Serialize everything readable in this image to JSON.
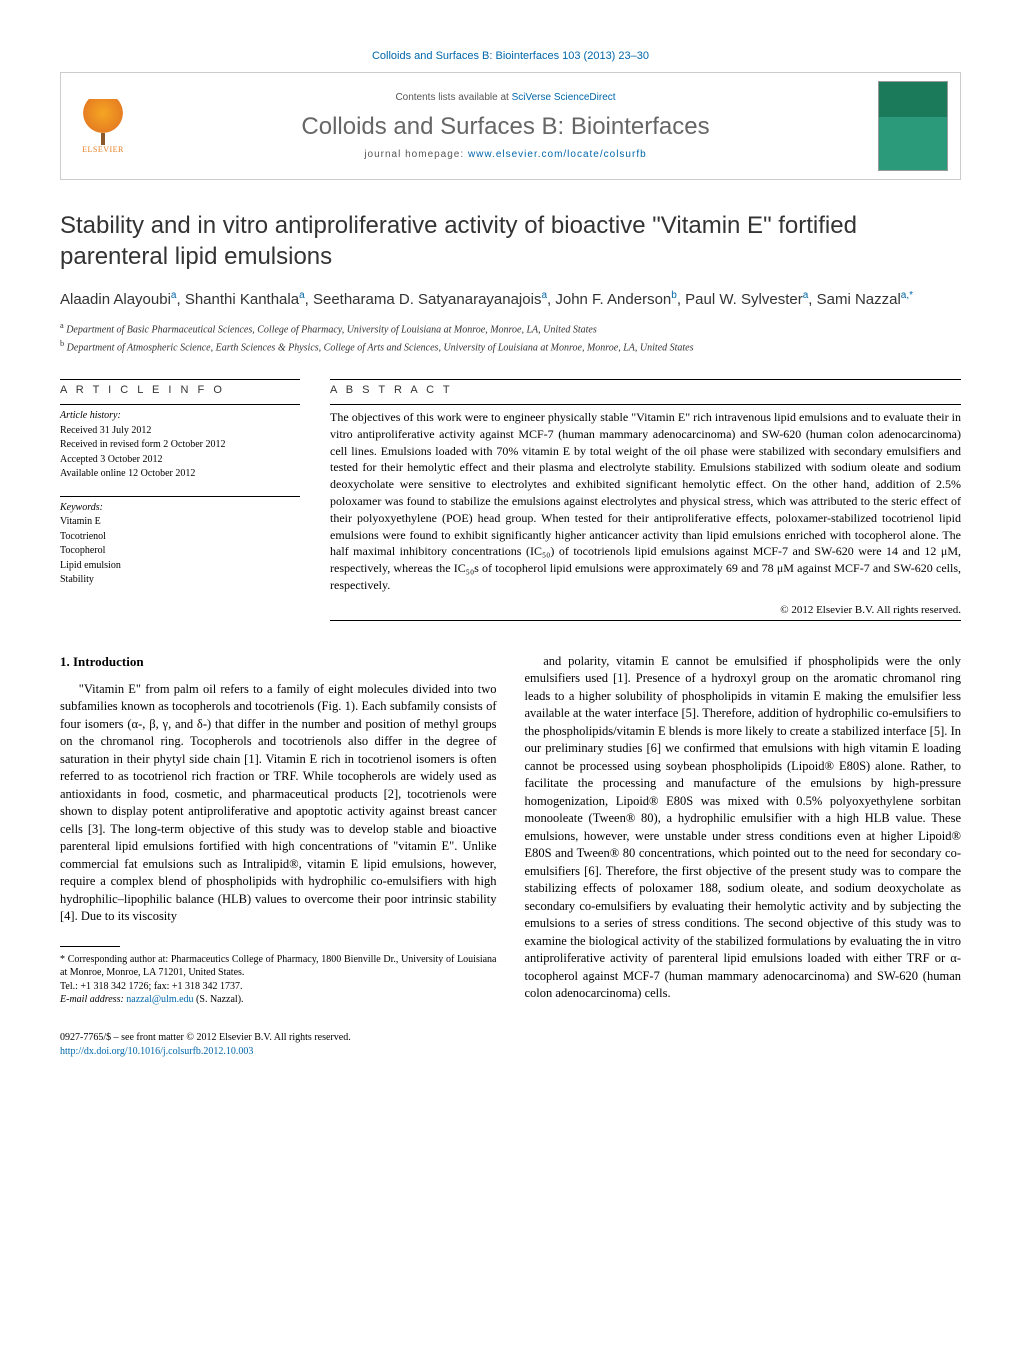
{
  "citation": "Colloids and Surfaces B: Biointerfaces 103 (2013) 23–30",
  "masthead": {
    "publisher": "ELSEVIER",
    "contents_prefix": "Contents lists available at ",
    "contents_link": "SciVerse ScienceDirect",
    "journal": "Colloids and Surfaces B: Biointerfaces",
    "homepage_label": "journal homepage: ",
    "homepage_url": "www.elsevier.com/locate/colsurfb"
  },
  "title": "Stability and in vitro antiproliferative activity of bioactive \"Vitamin E\" fortified parenteral lipid emulsions",
  "authors_html": "Alaadin Alayoubi<sup>a</sup>, Shanthi Kanthala<sup>a</sup>, Seetharama D. Satyanarayanajois<sup>a</sup>, John F. Anderson<sup>b</sup>, Paul W. Sylvester<sup>a</sup>, Sami Nazzal<sup>a,*</sup>",
  "affiliations": [
    {
      "key": "a",
      "text": "Department of Basic Pharmaceutical Sciences, College of Pharmacy, University of Louisiana at Monroe, Monroe, LA, United States"
    },
    {
      "key": "b",
      "text": "Department of Atmospheric Science, Earth Sciences & Physics, College of Arts and Sciences, University of Louisiana at Monroe, Monroe, LA, United States"
    }
  ],
  "article_info": {
    "heading": "A R T I C L E   I N F O",
    "history_label": "Article history:",
    "history": [
      "Received 31 July 2012",
      "Received in revised form 2 October 2012",
      "Accepted 3 October 2012",
      "Available online 12 October 2012"
    ],
    "keywords_label": "Keywords:",
    "keywords": [
      "Vitamin E",
      "Tocotrienol",
      "Tocopherol",
      "Lipid emulsion",
      "Stability"
    ]
  },
  "abstract": {
    "heading": "A B S T R A C T",
    "text": "The objectives of this work were to engineer physically stable \"Vitamin E\" rich intravenous lipid emulsions and to evaluate their in vitro antiproliferative activity against MCF-7 (human mammary adenocarcinoma) and SW-620 (human colon adenocarcinoma) cell lines. Emulsions loaded with 70% vitamin E by total weight of the oil phase were stabilized with secondary emulsifiers and tested for their hemolytic effect and their plasma and electrolyte stability. Emulsions stabilized with sodium oleate and sodium deoxycholate were sensitive to electrolytes and exhibited significant hemolytic effect. On the other hand, addition of 2.5% poloxamer was found to stabilize the emulsions against electrolytes and physical stress, which was attributed to the steric effect of their polyoxyethylene (POE) head group. When tested for their antiproliferative effects, poloxamer-stabilized tocotrienol lipid emulsions were found to exhibit significantly higher anticancer activity than lipid emulsions enriched with tocopherol alone. The half maximal inhibitory concentrations (IC₅₀) of tocotrienols lipid emulsions against MCF-7 and SW-620 were 14 and 12 μM, respectively, whereas the IC₅₀s of tocopherol lipid emulsions were approximately 69 and 78 μM against MCF-7 and SW-620 cells, respectively.",
    "copyright": "© 2012 Elsevier B.V. All rights reserved."
  },
  "body": {
    "section_number": "1.",
    "section_title": "Introduction",
    "paragraphs": [
      "\"Vitamin E\" from palm oil refers to a family of eight molecules divided into two subfamilies known as tocopherols and tocotrienols (Fig. 1). Each subfamily consists of four isomers (α-, β, γ, and δ-) that differ in the number and position of methyl groups on the chromanol ring. Tocopherols and tocotrienols also differ in the degree of saturation in their phytyl side chain [1]. Vitamin E rich in tocotrienol isomers is often referred to as tocotrienol rich fraction or TRF. While tocopherols are widely used as antioxidants in food, cosmetic, and pharmaceutical products [2], tocotrienols were shown to display potent antiproliferative and apoptotic activity against breast cancer cells [3]. The long-term objective of this study was to develop stable and bioactive parenteral lipid emulsions fortified with high concentrations of \"vitamin E\". Unlike commercial fat emulsions such as Intralipid®, vitamin E lipid emulsions, however, require a complex blend of phospholipids with hydrophilic co-emulsifiers with high hydrophilic–lipophilic balance (HLB) values to overcome their poor intrinsic stability [4]. Due to its viscosity",
      "and polarity, vitamin E cannot be emulsified if phospholipids were the only emulsifiers used [1]. Presence of a hydroxyl group on the aromatic chromanol ring leads to a higher solubility of phospholipids in vitamin E making the emulsifier less available at the water interface [5]. Therefore, addition of hydrophilic co-emulsifiers to the phospholipids/vitamin E blends is more likely to create a stabilized interface [5]. In our preliminary studies [6] we confirmed that emulsions with high vitamin E loading cannot be processed using soybean phospholipids (Lipoid® E80S) alone. Rather, to facilitate the processing and manufacture of the emulsions by high-pressure homogenization, Lipoid® E80S was mixed with 0.5% polyoxyethylene sorbitan monooleate (Tween® 80), a hydrophilic emulsifier with a high HLB value. These emulsions, however, were unstable under stress conditions even at higher Lipoid® E80S and Tween® 80 concentrations, which pointed out to the need for secondary co-emulsifiers [6]. Therefore, the first objective of the present study was to compare the stabilizing effects of poloxamer 188, sodium oleate, and sodium deoxycholate as secondary co-emulsifiers by evaluating their hemolytic activity and by subjecting the emulsions to a series of stress conditions. The second objective of this study was to examine the biological activity of the stabilized formulations by evaluating the in vitro antiproliferative activity of parenteral lipid emulsions loaded with either TRF or α-tocopherol against MCF-7 (human mammary adenocarcinoma) and SW-620 (human colon adenocarcinoma) cells."
    ],
    "corresponding": {
      "label": "* Corresponding author at: Pharmaceutics College of Pharmacy, 1800 Bienville Dr., University of Louisiana at Monroe, Monroe, LA 71201, United States.",
      "tel": "Tel.: +1 318 342 1726; fax: +1 318 342 1737.",
      "email_label": "E-mail address: ",
      "email": "nazzal@ulm.edu",
      "email_suffix": " (S. Nazzal)."
    }
  },
  "footer": {
    "issn": "0927-7765/$ – see front matter © 2012 Elsevier B.V. All rights reserved.",
    "doi": "http://dx.doi.org/10.1016/j.colsurfb.2012.10.003"
  },
  "colors": {
    "link": "#0066aa",
    "heading_gray": "#666666",
    "rule": "#000000"
  }
}
